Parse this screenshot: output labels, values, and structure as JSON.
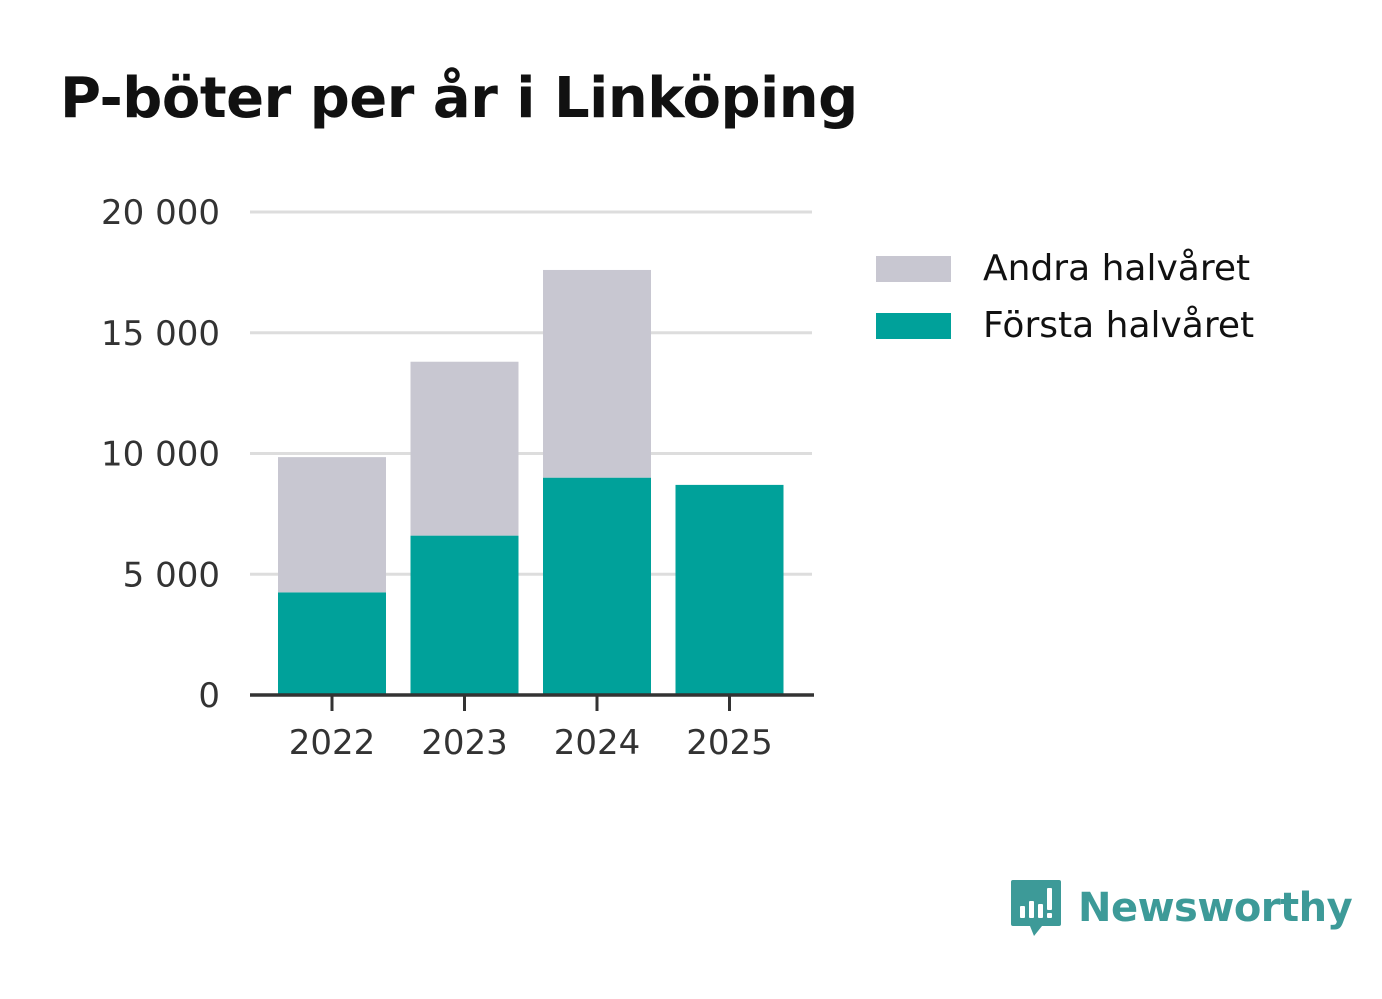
{
  "title": "P-böter per år i Linköping",
  "colors": {
    "first_half": "#00a19a",
    "second_half": "#c8c7d1",
    "grid": "#dddddd",
    "axis": "#333333",
    "brand": "#3d9a98"
  },
  "chart_data": {
    "type": "bar",
    "stacked": true,
    "categories": [
      "2022",
      "2023",
      "2024",
      "2025"
    ],
    "series": [
      {
        "name": "Första halvåret",
        "values": [
          4250,
          6600,
          9000,
          8700
        ]
      },
      {
        "name": "Andra halvåret",
        "values": [
          5600,
          7200,
          8600,
          0
        ]
      }
    ],
    "ylim": [
      0,
      20000
    ],
    "yticks": [
      0,
      5000,
      10000,
      15000,
      20000
    ],
    "ytick_labels": [
      "0",
      "5 000",
      "10 000",
      "15 000",
      "20 000"
    ],
    "grid": true,
    "legend_position": "right",
    "xlabel": "",
    "ylabel": ""
  },
  "legend": [
    {
      "label": "Andra halvåret",
      "color": "#c8c7d1"
    },
    {
      "label": "Första halvåret",
      "color": "#00a19a"
    }
  ],
  "brand": {
    "name": "Newsworthy",
    "icon": "newsworthy-logo-icon"
  }
}
